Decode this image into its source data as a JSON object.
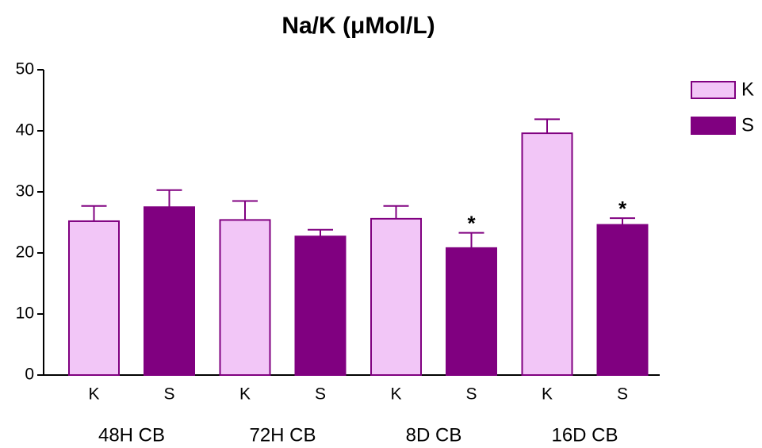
{
  "chart_data": {
    "type": "bar",
    "title": "Na/K (μMol/L)",
    "categories": [
      "48H CB",
      "72H CB",
      "8D CB",
      "16D CB"
    ],
    "series": [
      {
        "name": "K",
        "color": "#f2c6f7",
        "edge": "#800080",
        "values": [
          25.2,
          25.4,
          25.6,
          39.6
        ],
        "errors": [
          2.5,
          3.1,
          2.1,
          2.3
        ],
        "marks": [
          null,
          null,
          null,
          null
        ]
      },
      {
        "name": "S",
        "color": "#800080",
        "edge": "#800080",
        "values": [
          27.5,
          22.7,
          20.8,
          24.6
        ],
        "errors": [
          2.8,
          1.1,
          2.5,
          1.1
        ],
        "marks": [
          null,
          null,
          "*",
          "*"
        ]
      }
    ],
    "ylim": [
      0,
      50
    ],
    "yticks": [
      0,
      10,
      20,
      30,
      40,
      50
    ],
    "legend": "top-right"
  }
}
